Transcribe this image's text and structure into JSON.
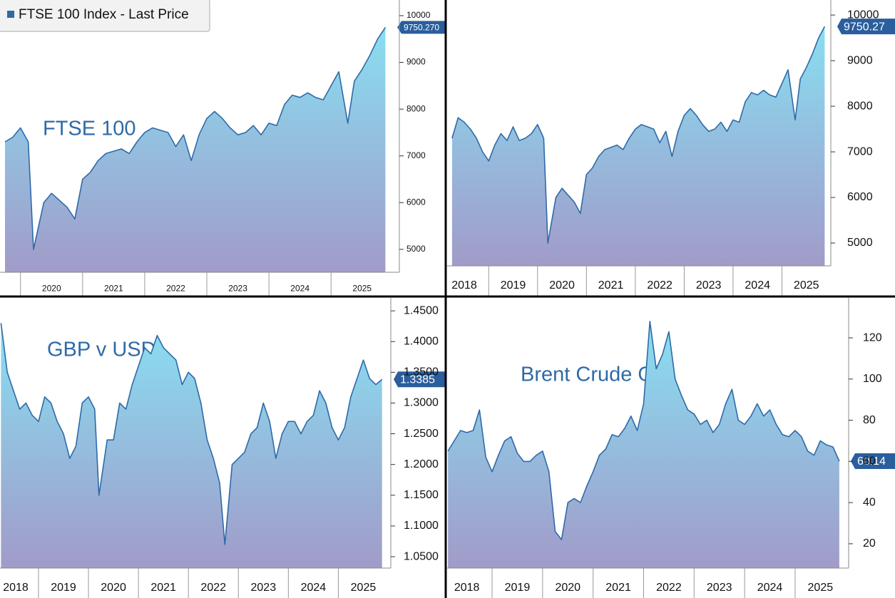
{
  "chart_data": [
    {
      "type": "area",
      "annotation": "FTSE 100",
      "legend": "upper left",
      "x": [
        2019.75,
        2019.875,
        2020.0,
        2020.125,
        2020.21,
        2020.375,
        2020.5,
        2020.625,
        2020.75,
        2020.875,
        2021.0,
        2021.125,
        2021.25,
        2021.375,
        2021.5,
        2021.625,
        2021.75,
        2021.875,
        2022.0,
        2022.125,
        2022.25,
        2022.375,
        2022.5,
        2022.625,
        2022.75,
        2022.875,
        2023.0,
        2023.125,
        2023.25,
        2023.375,
        2023.5,
        2023.625,
        2023.75,
        2023.875,
        2024.0,
        2024.125,
        2024.25,
        2024.375,
        2024.5,
        2024.625,
        2024.75,
        2024.875,
        2025.0,
        2025.125,
        2025.27,
        2025.375,
        2025.5,
        2025.625,
        2025.75,
        2025.875
      ],
      "series": [
        {
          "name": "FTSE 100 Index - Last Price",
          "color": "#2e6aa8",
          "values": [
            7300,
            7400,
            7600,
            7300,
            5000,
            6000,
            6200,
            6050,
            5900,
            5650,
            6500,
            6650,
            6900,
            7050,
            7100,
            7150,
            7050,
            7300,
            7500,
            7600,
            7550,
            7500,
            7200,
            7450,
            6900,
            7450,
            7800,
            7950,
            7800,
            7600,
            7450,
            7500,
            7650,
            7450,
            7700,
            7650,
            8100,
            8300,
            8250,
            8350,
            8250,
            8200,
            8500,
            8800,
            7700,
            8600,
            8850,
            9150,
            9500,
            9750.27
          ],
          "value_labels": [
            null,
            null,
            null,
            null,
            null,
            null,
            null,
            null,
            null,
            null,
            null,
            null,
            null,
            null,
            null,
            null,
            null,
            null,
            null,
            null,
            null,
            null,
            null,
            null,
            null,
            null,
            null,
            null,
            null,
            null,
            null,
            null,
            null,
            null,
            null,
            null,
            null,
            null,
            null,
            null,
            null,
            null,
            null,
            null,
            null,
            null,
            null,
            null,
            null,
            "9750.270"
          ]
        }
      ],
      "xlim": [
        2019.67,
        2026.1
      ],
      "xticks": [
        2020,
        2021,
        2022,
        2023,
        2024,
        2025
      ],
      "ylim": [
        4510,
        10335
      ],
      "yticks": [
        5000,
        6000,
        7000,
        8000,
        9000,
        10000
      ]
    },
    {
      "type": "area",
      "x": [
        2018.25,
        2018.375,
        2018.5,
        2018.625,
        2018.75,
        2018.875,
        2019.0,
        2019.125,
        2019.25,
        2019.375,
        2019.5,
        2019.625,
        2019.75,
        2019.875,
        2020.0,
        2020.125,
        2020.21,
        2020.375,
        2020.5,
        2020.625,
        2020.75,
        2020.875,
        2021.0,
        2021.125,
        2021.25,
        2021.375,
        2021.5,
        2021.625,
        2021.75,
        2021.875,
        2022.0,
        2022.125,
        2022.25,
        2022.375,
        2022.5,
        2022.625,
        2022.75,
        2022.875,
        2023.0,
        2023.125,
        2023.25,
        2023.375,
        2023.5,
        2023.625,
        2023.75,
        2023.875,
        2024.0,
        2024.125,
        2024.25,
        2024.375,
        2024.5,
        2024.625,
        2024.75,
        2024.875,
        2025.0,
        2025.125,
        2025.27,
        2025.375,
        2025.5,
        2025.625,
        2025.75,
        2025.875
      ],
      "series": [
        {
          "color": "#2e6aa8",
          "values": [
            7300,
            7750,
            7650,
            7500,
            7300,
            7000,
            6800,
            7150,
            7400,
            7250,
            7550,
            7250,
            7300,
            7400,
            7600,
            7300,
            5000,
            6000,
            6200,
            6050,
            5900,
            5650,
            6500,
            6650,
            6900,
            7050,
            7100,
            7150,
            7050,
            7300,
            7500,
            7600,
            7550,
            7500,
            7200,
            7450,
            6900,
            7450,
            7800,
            7950,
            7800,
            7600,
            7450,
            7500,
            7650,
            7450,
            7700,
            7650,
            8100,
            8300,
            8250,
            8350,
            8250,
            8200,
            8500,
            8800,
            7700,
            8600,
            8850,
            9150,
            9500,
            9750.27
          ]
        }
      ],
      "xlim": [
        2018.15,
        2026.0
      ],
      "xticks": [
        2018,
        2019,
        2020,
        2021,
        2022,
        2023,
        2024,
        2025
      ],
      "ylim": [
        4500,
        10330
      ],
      "yticks": [
        5000,
        6000,
        7000,
        8000,
        9000,
        10000
      ]
    },
    {
      "type": "area",
      "annotation": "GBP v USD",
      "x": [
        2018.25,
        2018.375,
        2018.5,
        2018.625,
        2018.75,
        2018.875,
        2019.0,
        2019.125,
        2019.25,
        2019.375,
        2019.5,
        2019.625,
        2019.75,
        2019.875,
        2020.0,
        2020.125,
        2020.21,
        2020.375,
        2020.5,
        2020.625,
        2020.75,
        2020.875,
        2021.0,
        2021.125,
        2021.25,
        2021.375,
        2021.5,
        2021.625,
        2021.75,
        2021.875,
        2022.0,
        2022.125,
        2022.25,
        2022.375,
        2022.5,
        2022.625,
        2022.73,
        2022.875,
        2023.0,
        2023.125,
        2023.25,
        2023.375,
        2023.5,
        2023.625,
        2023.75,
        2023.875,
        2024.0,
        2024.125,
        2024.25,
        2024.375,
        2024.5,
        2024.625,
        2024.75,
        2024.875,
        2025.0,
        2025.125,
        2025.25,
        2025.375,
        2025.5,
        2025.625,
        2025.75,
        2025.875
      ],
      "series": [
        {
          "color": "#2e6aa8",
          "values": [
            1.43,
            1.35,
            1.32,
            1.29,
            1.3,
            1.28,
            1.27,
            1.31,
            1.3,
            1.27,
            1.25,
            1.21,
            1.23,
            1.3,
            1.31,
            1.29,
            1.15,
            1.24,
            1.24,
            1.3,
            1.29,
            1.33,
            1.36,
            1.39,
            1.38,
            1.41,
            1.39,
            1.38,
            1.37,
            1.33,
            1.35,
            1.34,
            1.3,
            1.24,
            1.21,
            1.17,
            1.07,
            1.2,
            1.21,
            1.22,
            1.25,
            1.26,
            1.3,
            1.27,
            1.21,
            1.25,
            1.27,
            1.27,
            1.25,
            1.27,
            1.28,
            1.32,
            1.3,
            1.26,
            1.24,
            1.26,
            1.31,
            1.34,
            1.37,
            1.34,
            1.33,
            1.3385
          ]
        }
      ],
      "xlim": [
        2018.23,
        2026.05
      ],
      "xticks": [
        2018,
        2019,
        2020,
        2021,
        2022,
        2023,
        2024,
        2025
      ],
      "ylim": [
        1.0315,
        1.471
      ],
      "yticks": [
        {
          "value": 1.05,
          "label": "1.0500"
        },
        {
          "value": 1.1,
          "label": "1.1000"
        },
        {
          "value": 1.15,
          "label": "1.1500"
        },
        {
          "value": 1.2,
          "label": "1.2000"
        },
        {
          "value": 1.25,
          "label": "1.2500"
        },
        {
          "value": 1.3,
          "label": "1.3000"
        },
        {
          "value": 1.35,
          "label": "1.3500"
        },
        {
          "value": 1.4,
          "label": "1.4000"
        },
        {
          "value": 1.45,
          "label": "1.4500"
        }
      ]
    },
    {
      "type": "area",
      "annotation": "Brent Crude Oil",
      "x": [
        2018.125,
        2018.25,
        2018.375,
        2018.5,
        2018.625,
        2018.75,
        2018.875,
        2019.0,
        2019.125,
        2019.25,
        2019.375,
        2019.5,
        2019.625,
        2019.75,
        2019.875,
        2020.0,
        2020.125,
        2020.25,
        2020.375,
        2020.5,
        2020.625,
        2020.75,
        2020.875,
        2021.0,
        2021.125,
        2021.25,
        2021.375,
        2021.5,
        2021.625,
        2021.75,
        2021.875,
        2022.0,
        2022.125,
        2022.25,
        2022.375,
        2022.5,
        2022.625,
        2022.75,
        2022.875,
        2023.0,
        2023.125,
        2023.25,
        2023.375,
        2023.5,
        2023.625,
        2023.75,
        2023.875,
        2024.0,
        2024.125,
        2024.25,
        2024.375,
        2024.5,
        2024.625,
        2024.75,
        2024.875,
        2025.0,
        2025.125,
        2025.25,
        2025.375,
        2025.5,
        2025.625,
        2025.75,
        2025.875
      ],
      "series": [
        {
          "color": "#2e6aa8",
          "values": [
            65,
            70,
            75,
            74,
            75,
            85,
            62,
            55,
            63,
            70,
            72,
            64,
            60,
            60,
            63,
            65,
            55,
            26,
            22,
            40,
            42,
            40,
            48,
            55,
            63,
            66,
            73,
            72,
            76,
            82,
            75,
            88,
            128,
            105,
            112,
            123,
            100,
            92,
            85,
            83,
            78,
            80,
            74,
            78,
            88,
            95,
            80,
            78,
            82,
            88,
            82,
            85,
            78,
            73,
            72,
            75,
            72,
            65,
            63,
            70,
            68,
            67,
            60.14
          ]
        }
      ],
      "xlim": [
        2018.11,
        2026.06
      ],
      "xticks": [
        2018,
        2019,
        2020,
        2021,
        2022,
        2023,
        2024,
        2025
      ],
      "ylim": [
        8.2,
        139.4
      ],
      "yticks": [
        20,
        40,
        60,
        80,
        100,
        120
      ]
    }
  ]
}
